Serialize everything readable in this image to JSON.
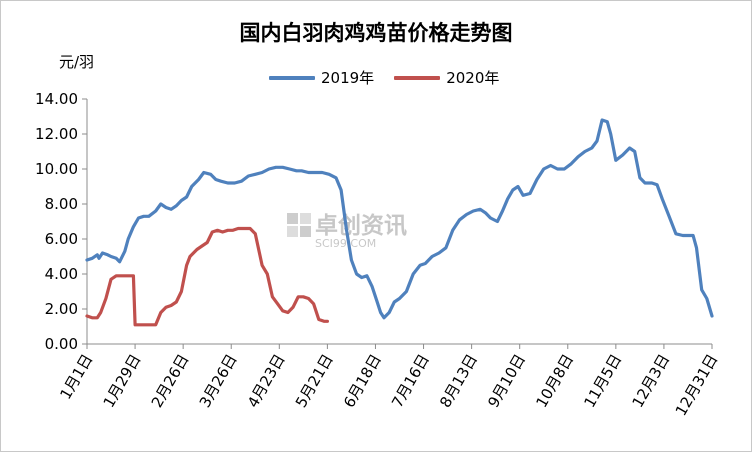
{
  "chart_data": {
    "type": "line",
    "title": "国内白羽肉鸡鸡苗价格走势图",
    "unit_label": "元/羽",
    "watermark": {
      "cn": "卓创资讯",
      "en": "SCI99.COM"
    },
    "ylim": [
      0,
      14
    ],
    "yticks": [
      0,
      2,
      4,
      6,
      8,
      10,
      12,
      14
    ],
    "ytick_labels": [
      "0.00",
      "2.00",
      "4.00",
      "6.00",
      "8.00",
      "10.00",
      "12.00",
      "14.00"
    ],
    "x_domain_days": [
      1,
      365
    ],
    "xticks": [
      {
        "label": "1月1日",
        "day": 1
      },
      {
        "label": "1月29日",
        "day": 29
      },
      {
        "label": "2月26日",
        "day": 57
      },
      {
        "label": "3月26日",
        "day": 85
      },
      {
        "label": "4月23日",
        "day": 113
      },
      {
        "label": "5月21日",
        "day": 141
      },
      {
        "label": "6月18日",
        "day": 169
      },
      {
        "label": "7月16日",
        "day": 197
      },
      {
        "label": "8月13日",
        "day": 225
      },
      {
        "label": "9月10日",
        "day": 253
      },
      {
        "label": "10月8日",
        "day": 281
      },
      {
        "label": "11月5日",
        "day": 309
      },
      {
        "label": "12月3日",
        "day": 337
      },
      {
        "label": "12月31日",
        "day": 365
      }
    ],
    "legend_position": "top",
    "series": [
      {
        "name": "2019年",
        "color": "#4f81bd",
        "x": [
          "1月1日",
          "1月4日",
          "1月7日",
          "1月8日",
          "1月10日",
          "1月13日",
          "1月15日",
          "1月18日",
          "1月20日",
          "1月23日",
          "1月25日",
          "1月28日",
          "1月31日",
          "2月3日",
          "2月6日",
          "2月10日",
          "2月13日",
          "2月16日",
          "2月19日",
          "2月22日",
          "2月25日",
          "2月28日",
          "3月3日",
          "3月7日",
          "3月10日",
          "3月14日",
          "3月17日",
          "3月20日",
          "3月24日",
          "3月28日",
          "4月1日",
          "4月5日",
          "4月9日",
          "4月13日",
          "4月17日",
          "4月21日",
          "4月25日",
          "4月29日",
          "5月3日",
          "5月6日",
          "5月10日",
          "5月14日",
          "5月18日",
          "5月22日",
          "5月26日",
          "5月29日",
          "6月1日",
          "6月4日",
          "6月7日",
          "6月10日",
          "6月13日",
          "6月16日",
          "6月19日",
          "6月21日",
          "6月23日",
          "6月26日",
          "6月29日",
          "7月2日",
          "7月6日",
          "7月10日",
          "7月14日",
          "7月17日",
          "7月21日",
          "7月25日",
          "7月29日",
          "8月2日",
          "8月6日",
          "8月10日",
          "8月14日",
          "8月18日",
          "8月21日",
          "8月24日",
          "8月28日",
          "8月31日",
          "9月3日",
          "9月6日",
          "9月9日",
          "9月12日",
          "9月16日",
          "9月20日",
          "9月24日",
          "9月28日",
          "10月2日",
          "10月6日",
          "10月10日",
          "10月14日",
          "10月18日",
          "10月22日",
          "10月25日",
          "10月28日",
          "10月31日",
          "11月2日",
          "11月5日",
          "11月9日",
          "11月13日",
          "11月16日",
          "11月19日",
          "11月22日",
          "11月26日",
          "11月29日",
          "12月2日",
          "12月6日",
          "12月10日",
          "12月14日",
          "12月18日",
          "12月20日",
          "12月22日",
          "12月25日",
          "12月28日",
          "12月31日"
        ],
        "values": [
          4.8,
          4.9,
          5.1,
          4.9,
          5.2,
          5.1,
          5.0,
          4.9,
          4.7,
          5.3,
          6.0,
          6.7,
          7.2,
          7.3,
          7.3,
          7.6,
          8.0,
          7.8,
          7.7,
          7.9,
          8.2,
          8.4,
          9.0,
          9.4,
          9.8,
          9.7,
          9.4,
          9.3,
          9.2,
          9.2,
          9.3,
          9.6,
          9.7,
          9.8,
          10.0,
          10.1,
          10.1,
          10.0,
          9.9,
          9.9,
          9.8,
          9.8,
          9.8,
          9.7,
          9.5,
          8.8,
          6.6,
          4.8,
          4.0,
          3.8,
          3.9,
          3.3,
          2.4,
          1.8,
          1.5,
          1.8,
          2.4,
          2.6,
          3.0,
          4.0,
          4.5,
          4.6,
          5.0,
          5.2,
          5.5,
          6.5,
          7.1,
          7.4,
          7.6,
          7.7,
          7.5,
          7.2,
          7.0,
          7.6,
          8.3,
          8.8,
          9.0,
          8.5,
          8.6,
          9.4,
          10.0,
          10.2,
          10.0,
          10.0,
          10.3,
          10.7,
          11.0,
          11.2,
          11.6,
          12.8,
          12.7,
          12.0,
          10.5,
          10.8,
          11.2,
          11.0,
          9.5,
          9.2,
          9.2,
          9.1,
          8.3,
          7.3,
          6.3,
          6.2,
          6.2,
          6.2,
          5.5,
          3.1,
          2.6,
          1.6
        ]
      },
      {
        "name": "2020年",
        "color": "#c0504d",
        "x": [
          "1月1日",
          "1月4日",
          "1月7日",
          "1月9日",
          "1月12日",
          "1月15日",
          "1月18日",
          "1月21日",
          "1月25日",
          "1月28日",
          "1月29日",
          "1月30日",
          "2月3日",
          "2月7日",
          "2月10日",
          "2月13日",
          "2月16日",
          "2月19日",
          "2月22日",
          "2月25日",
          "2月28日",
          "3月2日",
          "3月6日",
          "3月9日",
          "3月12日",
          "3月15日",
          "3月18日",
          "3月21日",
          "3月24日",
          "3月27日",
          "3月30日",
          "4月2日",
          "4月6日",
          "4月9日",
          "4月13日",
          "4月16日",
          "4月19日",
          "4月22日",
          "4月25日",
          "4月28日",
          "5月1日",
          "5月4日",
          "5月7日",
          "5月10日",
          "5月13日",
          "5月16日",
          "5月19日",
          "5月21日"
        ],
        "values": [
          1.6,
          1.5,
          1.5,
          1.8,
          2.6,
          3.7,
          3.9,
          3.9,
          3.9,
          3.9,
          1.1,
          1.1,
          1.1,
          1.1,
          1.1,
          1.8,
          2.1,
          2.2,
          2.4,
          3.0,
          4.5,
          5.0,
          5.4,
          5.6,
          5.8,
          6.4,
          6.5,
          6.4,
          6.5,
          6.5,
          6.6,
          6.6,
          6.6,
          6.3,
          4.5,
          4.0,
          2.7,
          2.3,
          1.9,
          1.8,
          2.1,
          2.7,
          2.7,
          2.6,
          2.3,
          1.4,
          1.3,
          1.3
        ]
      }
    ]
  }
}
